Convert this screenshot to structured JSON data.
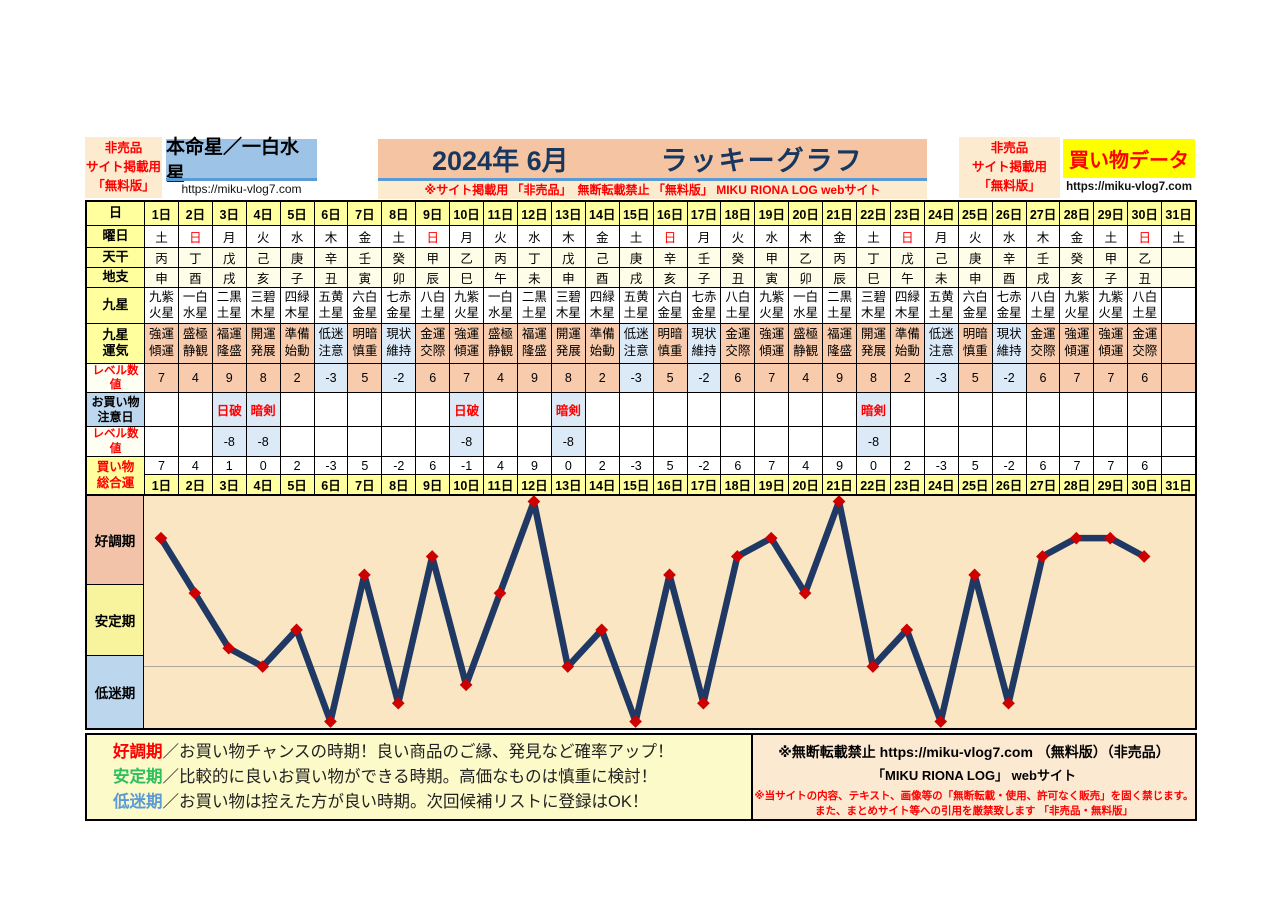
{
  "header": {
    "left_note": {
      "lines": [
        "非売品",
        "サイト掲載用",
        "「無料版」"
      ]
    },
    "honmeisei": {
      "title": "本命星／一白水星",
      "url": "https://miku-vlog7.com"
    },
    "title": {
      "year_month": "2024年 6月",
      "name": "ラッキーグラフ",
      "subtitle": "※サイト掲載用 「非売品」　無断転載禁止 「無料版」 MIKU RIONA LOG  webサイト"
    },
    "right_note": {
      "lines": [
        "非売品",
        "サイト掲載用",
        "「無料版」"
      ]
    },
    "data_badge": {
      "label": "買い物データ",
      "url": "https://miku-vlog7.com"
    }
  },
  "table": {
    "row_labels": {
      "day": "日",
      "youbi": "曜日",
      "tenkan": "天干",
      "chishi": "地支",
      "kyusei": "九星",
      "unki": "九星\n運気",
      "level": "レベル数値",
      "chuui": "お買い物\n注意日",
      "level2": "レベル数値",
      "total": "買い物\n総合運"
    },
    "days": [
      "1日",
      "2日",
      "3日",
      "4日",
      "5日",
      "6日",
      "7日",
      "8日",
      "9日",
      "10日",
      "11日",
      "12日",
      "13日",
      "14日",
      "15日",
      "16日",
      "17日",
      "18日",
      "19日",
      "20日",
      "21日",
      "22日",
      "23日",
      "24日",
      "25日",
      "26日",
      "27日",
      "28日",
      "29日",
      "30日",
      "31日"
    ],
    "youbi": [
      "土",
      "日",
      "月",
      "火",
      "水",
      "木",
      "金",
      "土",
      "日",
      "月",
      "火",
      "水",
      "木",
      "金",
      "土",
      "日",
      "月",
      "火",
      "水",
      "木",
      "金",
      "土",
      "日",
      "月",
      "火",
      "水",
      "木",
      "金",
      "土",
      "日",
      "土"
    ],
    "tenkan": [
      "丙",
      "丁",
      "戊",
      "己",
      "庚",
      "辛",
      "壬",
      "癸",
      "甲",
      "乙",
      "丙",
      "丁",
      "戊",
      "己",
      "庚",
      "辛",
      "壬",
      "癸",
      "甲",
      "乙",
      "丙",
      "丁",
      "戊",
      "己",
      "庚",
      "辛",
      "壬",
      "癸",
      "甲",
      "乙",
      ""
    ],
    "chishi": [
      "申",
      "酉",
      "戌",
      "亥",
      "子",
      "丑",
      "寅",
      "卯",
      "辰",
      "巳",
      "午",
      "未",
      "申",
      "酉",
      "戌",
      "亥",
      "子",
      "丑",
      "寅",
      "卯",
      "辰",
      "巳",
      "午",
      "未",
      "申",
      "酉",
      "戌",
      "亥",
      "子",
      "丑",
      ""
    ],
    "kyusei": [
      "九紫火星",
      "一白水星",
      "二黒土星",
      "三碧木星",
      "四緑木星",
      "五黄土星",
      "六白金星",
      "七赤金星",
      "八白土星",
      "九紫火星",
      "一白水星",
      "二黒土星",
      "三碧木星",
      "四緑木星",
      "五黄土星",
      "六白金星",
      "七赤金星",
      "八白土星",
      "九紫火星",
      "一白水星",
      "二黒土星",
      "三碧木星",
      "四緑木星",
      "五黄土星",
      "六白金星",
      "七赤金星",
      "八白土星",
      "九紫火星",
      "九紫火星",
      "八白土星",
      ""
    ],
    "unki": [
      "強運傾運",
      "盛極静観",
      "福運隆盛",
      "開運発展",
      "準備始動",
      "低迷注意",
      "明暗慎重",
      "現状維持",
      "金運交際",
      "強運傾運",
      "盛極静観",
      "福運隆盛",
      "開運発展",
      "準備始動",
      "低迷注意",
      "明暗慎重",
      "現状維持",
      "金運交際",
      "強運傾運",
      "盛極静観",
      "福運隆盛",
      "開運発展",
      "準備始動",
      "低迷注意",
      "明暗慎重",
      "現状維持",
      "金運交際",
      "強運傾運",
      "強運傾運",
      "金運交際",
      ""
    ],
    "unki_blue": [
      "低迷注意",
      "現状維持"
    ],
    "level": [
      7,
      4,
      9,
      8,
      2,
      -3,
      5,
      -2,
      6,
      7,
      4,
      9,
      8,
      2,
      -3,
      5,
      -2,
      6,
      7,
      4,
      9,
      8,
      2,
      -3,
      5,
      -2,
      6,
      7,
      7,
      6,
      ""
    ],
    "chuui": [
      "",
      "",
      "日破",
      "暗剣",
      "",
      "",
      "",
      "",
      "",
      "日破",
      "",
      "",
      "暗剣",
      "",
      "",
      "",
      "",
      "",
      "",
      "",
      "",
      "暗剣",
      "",
      "",
      "",
      "",
      "",
      "",
      "",
      "",
      ""
    ],
    "level2": [
      "",
      "",
      -8,
      -8,
      "",
      "",
      "",
      "",
      "",
      -8,
      "",
      "",
      -8,
      "",
      "",
      "",
      "",
      "",
      "",
      "",
      "",
      -8,
      "",
      "",
      "",
      "",
      "",
      "",
      "",
      "",
      ""
    ],
    "total": [
      7,
      4,
      1,
      0,
      2,
      -3,
      5,
      -2,
      6,
      -1,
      4,
      9,
      0,
      2,
      -3,
      5,
      -2,
      6,
      7,
      4,
      9,
      0,
      2,
      -3,
      5,
      -2,
      6,
      7,
      7,
      6,
      ""
    ],
    "positive_color": "#F8CBAD",
    "negative_color": "#DCE9F7"
  },
  "chart_data": {
    "type": "line",
    "series_name": "買い物総合運",
    "categories": [
      "1日",
      "2日",
      "3日",
      "4日",
      "5日",
      "6日",
      "7日",
      "8日",
      "9日",
      "10日",
      "11日",
      "12日",
      "13日",
      "14日",
      "15日",
      "16日",
      "17日",
      "18日",
      "19日",
      "20日",
      "21日",
      "22日",
      "23日",
      "24日",
      "25日",
      "26日",
      "27日",
      "28日",
      "29日",
      "30日"
    ],
    "values": [
      7,
      4,
      1,
      0,
      2,
      -3,
      5,
      -2,
      6,
      -1,
      4,
      9,
      0,
      2,
      -3,
      5,
      -2,
      6,
      7,
      4,
      9,
      0,
      2,
      -3,
      5,
      -2,
      6,
      7,
      7,
      6
    ],
    "ylim": [
      -3.6,
      9.3
    ],
    "zero_line": 0,
    "grid": "zero line only",
    "bands": [
      {
        "label": "好調期",
        "range": [
          4.5,
          9.3
        ],
        "color": "#F2C3A9"
      },
      {
        "label": "安定期",
        "range": [
          0.7,
          4.5
        ],
        "color": "#F8F49E"
      },
      {
        "label": "低迷期",
        "range": [
          -3.6,
          0.7
        ],
        "color": "#BCD6EE"
      }
    ],
    "line_color": "#1F3864",
    "marker": "diamond",
    "marker_color": "#CC0000",
    "plot_bg": "#FAE6C3"
  },
  "legend": {
    "items": [
      {
        "term": "好調期",
        "color": "#FF0000",
        "desc": "／お買い物チャンスの時期！良い商品のご縁、発見など確率アップ！"
      },
      {
        "term": "安定期",
        "color": "#2DBE60",
        "desc": "／比較的に良いお買い物ができる時期。高価なものは慎重に検討！"
      },
      {
        "term": "低迷期",
        "color": "#5B9BD5",
        "desc": "／お買い物は控えた方が良い時期。次回候補リストに登録はOK！"
      }
    ],
    "copyright": {
      "line1": "※無断転載禁止  https://miku-vlog7.com （無料版）（非売品）",
      "line2": "「MIKU RIONA LOG」 webサイト",
      "line3": "※当サイトの内容、テキスト、画像等の「無断転載・使用、許可なく販売」を固く禁じます。",
      "line4": "また、まとめサイト等への引用を厳禁致します 「非売品・無料版」"
    }
  }
}
